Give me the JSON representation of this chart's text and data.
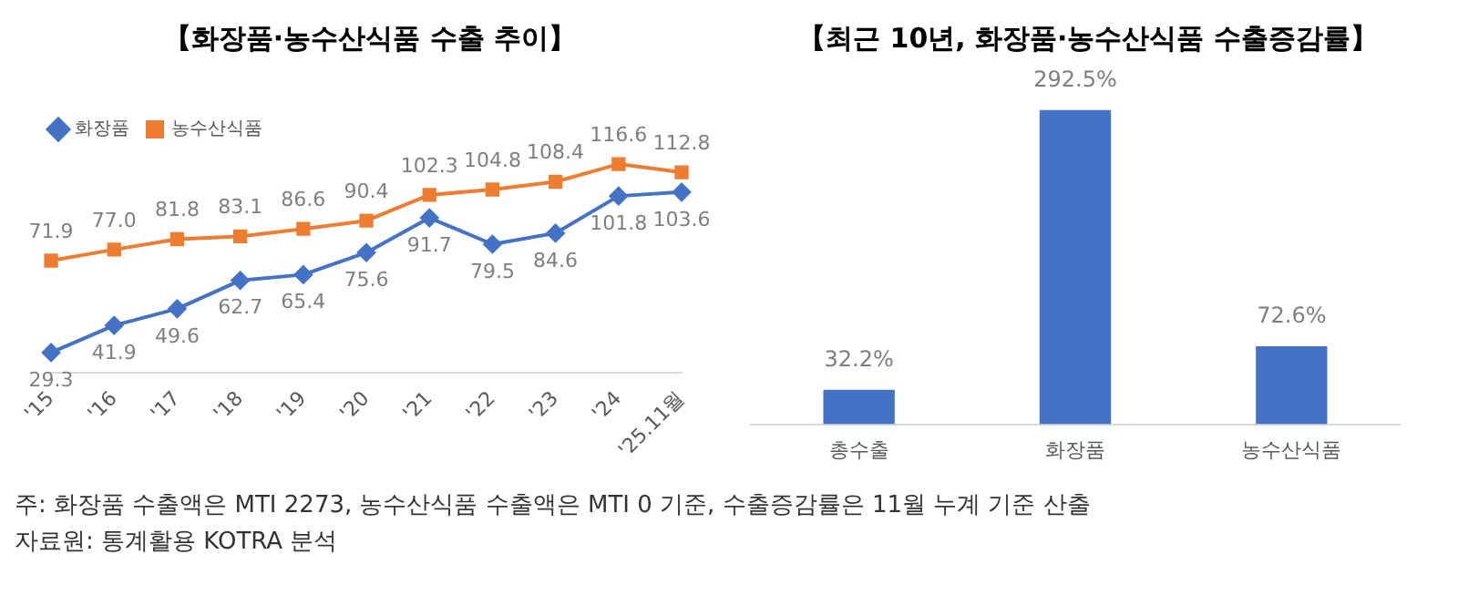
{
  "chart_data": [
    {
      "type": "line",
      "title": "【화장품·농수산식품 수출 추이】",
      "categories": [
        "'15",
        "'16",
        "'17",
        "'18",
        "'19",
        "'20",
        "'21",
        "'22",
        "'23",
        "'24",
        "'25.11월"
      ],
      "series": [
        {
          "name": "화장품",
          "color": "#4472c4",
          "marker": "diamond",
          "values": [
            29.3,
            41.9,
            49.6,
            62.7,
            65.4,
            75.6,
            91.7,
            79.5,
            84.6,
            101.8,
            103.6
          ],
          "value_labels": [
            "29.3",
            "41.9",
            "49.6",
            "62.7",
            "65.4",
            "75.6",
            "91.7",
            "79.5",
            "84.6",
            "101.8",
            "103.6"
          ]
        },
        {
          "name": "농수산식품",
          "color": "#ed7d31",
          "marker": "square",
          "values": [
            71.9,
            77.0,
            81.8,
            83.1,
            86.6,
            90.4,
            102.3,
            104.8,
            108.4,
            116.6,
            112.8
          ],
          "value_labels": [
            "71.9",
            "77.0",
            "81.8",
            "83.1",
            "86.6",
            "90.4",
            "102.3",
            "104.8",
            "108.4",
            "116.6",
            "112.8"
          ]
        }
      ],
      "legend": "top left",
      "tick_labels": "x",
      "grid": false,
      "annotations": [
        "주: 화장품 수출액은 MTI 2273, 농수산식품 수출액은 MTI 0 기준, 수출증감률은 11월 누계 기준 산출",
        "자료원: 통계활용 KOTRA 분석"
      ]
    },
    {
      "type": "bar",
      "title": "【최근 10년, 화장품·농수산식품 수출증감률】",
      "categories": [
        "총수출",
        "화장품",
        "농수산식품"
      ],
      "values": [
        32.2,
        292.5,
        72.6
      ],
      "color": "#4472c4",
      "value_labels": [
        "32.2%",
        "292.5%",
        "72.6%"
      ],
      "tick_labels": "x",
      "grid": false
    }
  ]
}
